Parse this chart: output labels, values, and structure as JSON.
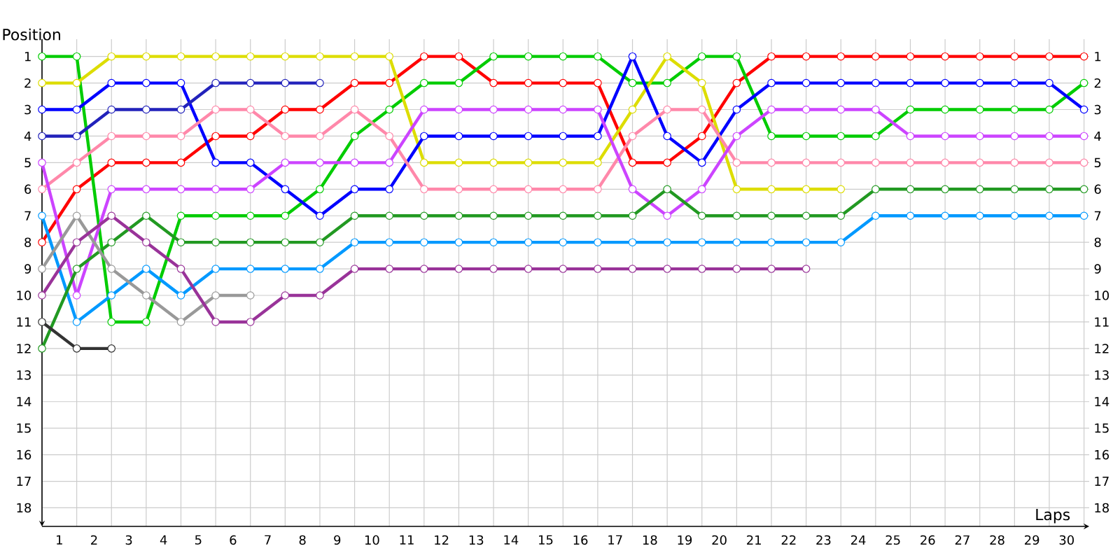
{
  "chart_data": {
    "type": "line",
    "xlabel": "Laps",
    "ylabel": "Position",
    "x": [
      0,
      1,
      2,
      3,
      4,
      5,
      6,
      7,
      8,
      9,
      10,
      11,
      12,
      13,
      14,
      15,
      16,
      17,
      18,
      19,
      20,
      21,
      22,
      23,
      24,
      25,
      26,
      27,
      28,
      29,
      30
    ],
    "xlim": [
      0,
      30.15
    ],
    "xticks": [
      {
        "value": 0.5,
        "label": "1"
      },
      {
        "value": 1.5,
        "label": "2"
      },
      {
        "value": 2.5,
        "label": "3"
      },
      {
        "value": 3.5,
        "label": "4"
      },
      {
        "value": 4.5,
        "label": "5"
      },
      {
        "value": 5.5,
        "label": "6"
      },
      {
        "value": 6.5,
        "label": "7"
      },
      {
        "value": 7.5,
        "label": "8"
      },
      {
        "value": 8.5,
        "label": "9"
      },
      {
        "value": 9.5,
        "label": "10"
      },
      {
        "value": 10.5,
        "label": "11"
      },
      {
        "value": 11.5,
        "label": "12"
      },
      {
        "value": 12.5,
        "label": "13"
      },
      {
        "value": 13.5,
        "label": "14"
      },
      {
        "value": 14.5,
        "label": "15"
      },
      {
        "value": 15.5,
        "label": "16"
      },
      {
        "value": 16.5,
        "label": "17"
      },
      {
        "value": 17.5,
        "label": "18"
      },
      {
        "value": 18.5,
        "label": "19"
      },
      {
        "value": 19.5,
        "label": "20"
      },
      {
        "value": 20.5,
        "label": "21"
      },
      {
        "value": 21.5,
        "label": "22"
      },
      {
        "value": 22.5,
        "label": "23"
      },
      {
        "value": 23.5,
        "label": "24"
      },
      {
        "value": 24.5,
        "label": "25"
      },
      {
        "value": 25.5,
        "label": "26"
      },
      {
        "value": 26.5,
        "label": "27"
      },
      {
        "value": 27.5,
        "label": "28"
      },
      {
        "value": 28.5,
        "label": "29"
      },
      {
        "value": 29.5,
        "label": "30"
      }
    ],
    "ylim": [
      18.7,
      0.35
    ],
    "yticks": [
      1,
      2,
      3,
      4,
      5,
      6,
      7,
      8,
      9,
      10,
      11,
      12,
      13,
      14,
      15,
      16,
      17,
      18
    ],
    "y2lim": [
      18.7,
      0.35
    ],
    "y2ticks": [
      1,
      2,
      3,
      4,
      5,
      6,
      7,
      8,
      9,
      10,
      11,
      12,
      13,
      14,
      15,
      16,
      17,
      18
    ],
    "grid": true,
    "marker": "circle",
    "line_style": "solid",
    "series": [
      {
        "color": "#ff0000",
        "values": [
          8,
          6,
          5,
          5,
          5,
          4,
          4,
          3,
          3,
          2,
          2,
          1,
          1,
          2,
          2,
          2,
          2,
          5,
          5,
          4,
          2,
          1,
          1,
          1,
          1,
          1,
          1,
          1,
          1,
          1,
          1
        ]
      },
      {
        "color": "#00cc00",
        "values": [
          1,
          1,
          11,
          11,
          7,
          7,
          7,
          7,
          6,
          4,
          3,
          2,
          2,
          1,
          1,
          1,
          1,
          2,
          2,
          1,
          1,
          4,
          4,
          4,
          4,
          3,
          3,
          3,
          3,
          3,
          2
        ]
      },
      {
        "color": "#dddd00",
        "values": [
          2,
          2,
          1,
          1,
          1,
          1,
          1,
          1,
          1,
          1,
          1,
          5,
          5,
          5,
          5,
          5,
          5,
          3,
          1,
          2,
          6,
          6,
          6,
          6,
          null,
          null,
          null,
          null,
          null,
          null,
          null
        ]
      },
      {
        "color": "#0000ff",
        "values": [
          3,
          3,
          2,
          2,
          2,
          5,
          5,
          6,
          7,
          6,
          6,
          4,
          4,
          4,
          4,
          4,
          4,
          1,
          4,
          5,
          3,
          2,
          2,
          2,
          2,
          2,
          2,
          2,
          2,
          2,
          3
        ]
      },
      {
        "color": "#2222bb",
        "values": [
          4,
          4,
          3,
          3,
          3,
          2,
          2,
          2,
          2,
          null,
          null,
          null,
          null,
          null,
          null,
          null,
          null,
          null,
          null,
          null,
          null,
          null,
          null,
          null,
          null,
          null,
          null,
          null,
          null,
          null,
          null
        ]
      },
      {
        "color": "#ff88aa",
        "values": [
          6,
          5,
          4,
          4,
          4,
          3,
          3,
          4,
          4,
          3,
          4,
          6,
          6,
          6,
          6,
          6,
          6,
          4,
          3,
          3,
          5,
          5,
          5,
          5,
          5,
          5,
          5,
          5,
          5,
          5,
          5
        ]
      },
      {
        "color": "#cc44ff",
        "values": [
          5,
          10,
          6,
          6,
          6,
          6,
          6,
          5,
          5,
          5,
          5,
          3,
          3,
          3,
          3,
          3,
          3,
          6,
          7,
          6,
          4,
          3,
          3,
          3,
          3,
          4,
          4,
          4,
          4,
          4,
          4
        ]
      },
      {
        "color": "#0099ff",
        "values": [
          7,
          11,
          10,
          9,
          10,
          9,
          9,
          9,
          9,
          8,
          8,
          8,
          8,
          8,
          8,
          8,
          8,
          8,
          8,
          8,
          8,
          8,
          8,
          8,
          7,
          7,
          7,
          7,
          7,
          7,
          7
        ]
      },
      {
        "color": "#229922",
        "values": [
          12,
          9,
          8,
          7,
          8,
          8,
          8,
          8,
          8,
          7,
          7,
          7,
          7,
          7,
          7,
          7,
          7,
          7,
          6,
          7,
          7,
          7,
          7,
          7,
          6,
          6,
          6,
          6,
          6,
          6,
          6
        ]
      },
      {
        "color": "#999999",
        "values": [
          9,
          7,
          9,
          10,
          11,
          10,
          10,
          null,
          null,
          null,
          null,
          null,
          null,
          null,
          null,
          null,
          null,
          null,
          null,
          null,
          null,
          null,
          null,
          null,
          null,
          null,
          null,
          null,
          null,
          null,
          null
        ]
      },
      {
        "color": "#993399",
        "values": [
          10,
          8,
          7,
          8,
          9,
          11,
          11,
          10,
          10,
          9,
          9,
          9,
          9,
          9,
          9,
          9,
          9,
          9,
          9,
          9,
          9,
          9,
          9,
          null,
          null,
          null,
          null,
          null,
          null,
          null,
          null
        ]
      },
      {
        "color": "#333333",
        "values": [
          11,
          12,
          12,
          null,
          null,
          null,
          null,
          null,
          null,
          null,
          null,
          null,
          null,
          null,
          null,
          null,
          null,
          null,
          null,
          null,
          null,
          null,
          null,
          null,
          null,
          null,
          null,
          null,
          null,
          null,
          null
        ]
      }
    ]
  }
}
